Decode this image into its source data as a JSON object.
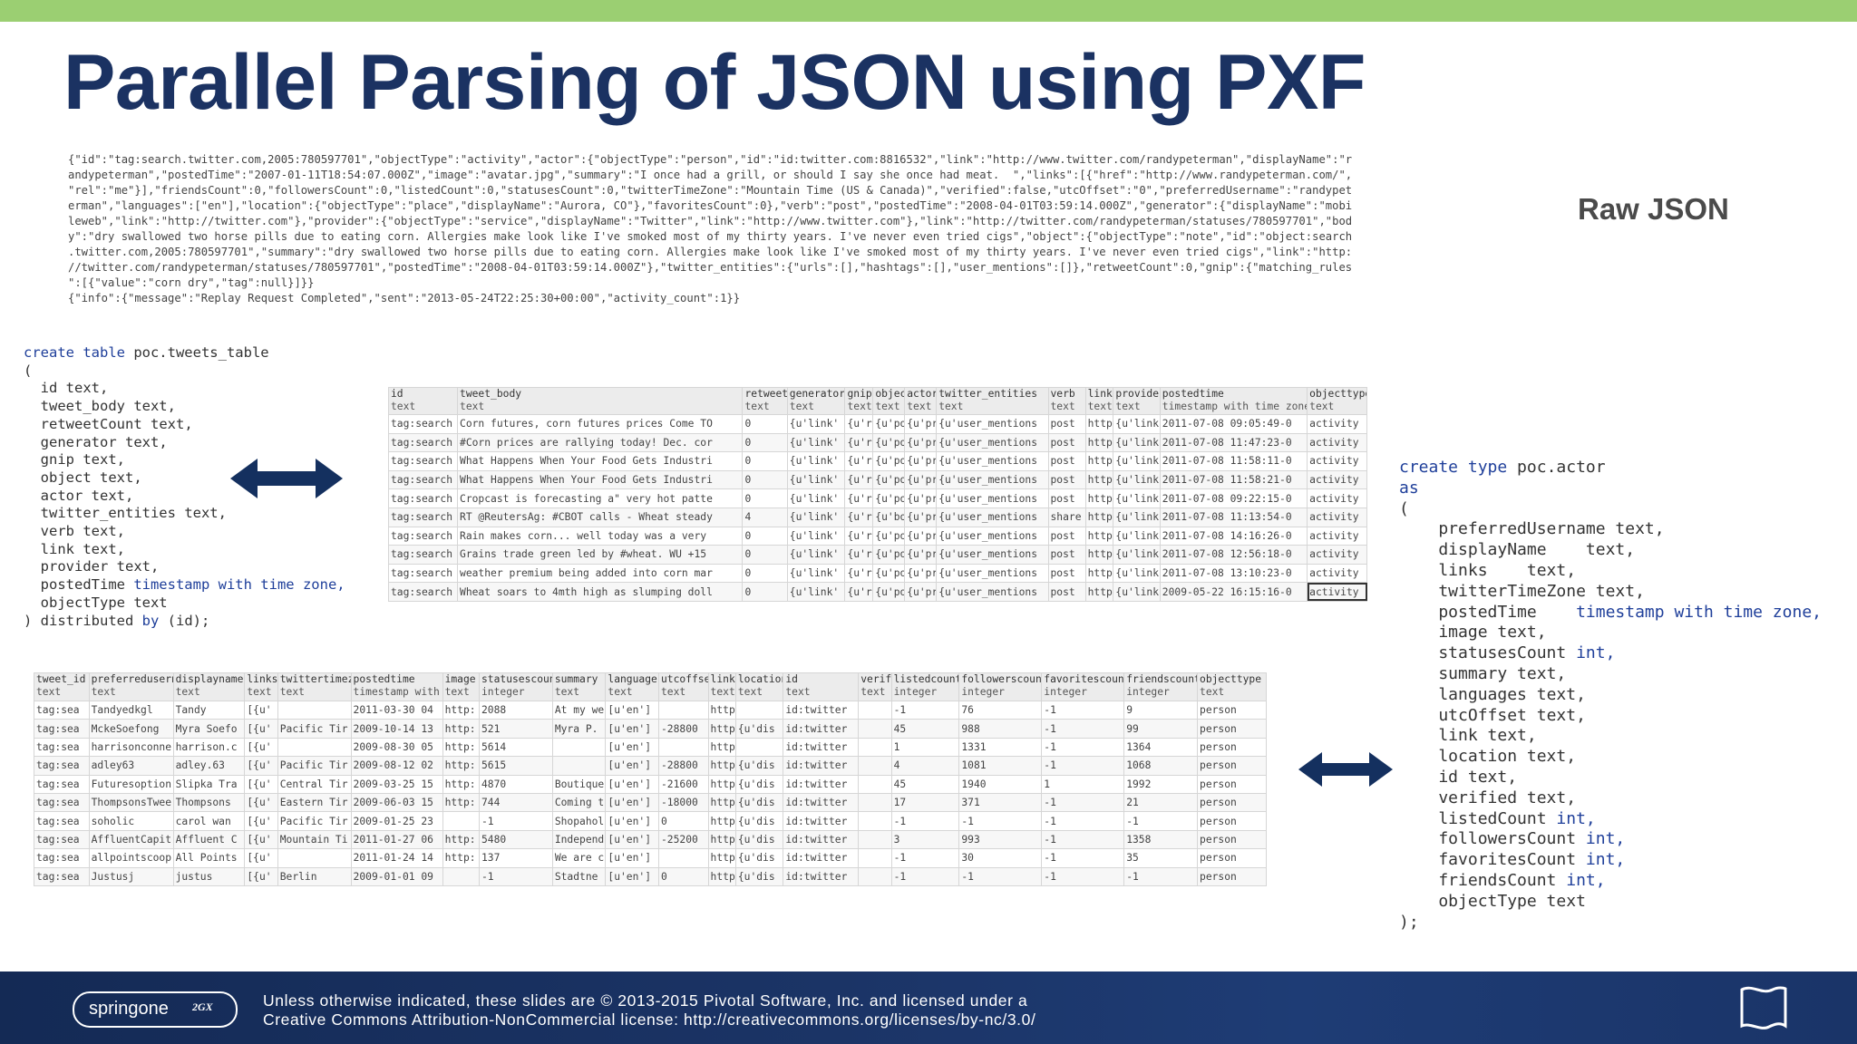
{
  "slide": {
    "title": "Parallel Parsing of JSON using PXF",
    "raw_label": "Raw JSON"
  },
  "raw_json_lines": [
    "{\"id\":\"tag:search.twitter.com,2005:780597701\",\"objectType\":\"activity\",\"actor\":{\"objectType\":\"person\",\"id\":\"id:twitter.com:8816532\",\"link\":\"http://www.twitter.com/randypeterman\",\"displayName\":\"r",
    "andypeterman\",\"postedTime\":\"2007-01-11T18:54:07.000Z\",\"image\":\"avatar.jpg\",\"summary\":\"I once had a grill, or should I say she once had meat.  \",\"links\":[{\"href\":\"http://www.randypeterman.com/\",",
    "\"rel\":\"me\"}],\"friendsCount\":0,\"followersCount\":0,\"listedCount\":0,\"statusesCount\":0,\"twitterTimeZone\":\"Mountain Time (US & Canada)\",\"verified\":false,\"utcOffset\":\"0\",\"preferredUsername\":\"randypet",
    "erman\",\"languages\":[\"en\"],\"location\":{\"objectType\":\"place\",\"displayName\":\"Aurora, CO\"},\"favoritesCount\":0},\"verb\":\"post\",\"postedTime\":\"2008-04-01T03:59:14.000Z\",\"generator\":{\"displayName\":\"mobi",
    "leweb\",\"link\":\"http://twitter.com\"},\"provider\":{\"objectType\":\"service\",\"displayName\":\"Twitter\",\"link\":\"http://www.twitter.com\"},\"link\":\"http://twitter.com/randypeterman/statuses/780597701\",\"bod",
    "y\":\"dry swallowed two horse pills due to eating corn. Allergies make look like I've smoked most of my thirty years. I've never even tried cigs\",\"object\":{\"objectType\":\"note\",\"id\":\"object:search",
    ".twitter.com,2005:780597701\",\"summary\":\"dry swallowed two horse pills due to eating corn. Allergies make look like I've smoked most of my thirty years. I've never even tried cigs\",\"link\":\"http:",
    "//twitter.com/randypeterman/statuses/780597701\",\"postedTime\":\"2008-04-01T03:59:14.000Z\"},\"twitter_entities\":{\"urls\":[],\"hashtags\":[],\"user_mentions\":[]},\"retweetCount\":0,\"gnip\":{\"matching_rules",
    "\":[{\"value\":\"corn dry\",\"tag\":null}]}}",
    "{\"info\":{\"message\":\"Replay Request Completed\",\"sent\":\"2013-05-24T22:25:30+00:00\",\"activity_count\":1}}"
  ],
  "create_table": {
    "kw_create_table": "create table",
    "table_name": " poc.tweets_table",
    "open": "(",
    "columns": [
      {
        "name": "  id",
        "type": " text,"
      },
      {
        "name": "  tweet_body",
        "type": " text,"
      },
      {
        "name": "  retweetCount",
        "type": " text,"
      },
      {
        "name": "  generator",
        "type": " text,"
      },
      {
        "name": "  gnip",
        "type": " text,"
      },
      {
        "name": "  object",
        "type": " text,"
      },
      {
        "name": "  actor",
        "type": " text,"
      },
      {
        "name": "  twitter_entities",
        "type": " text,"
      },
      {
        "name": "  verb",
        "type": " text,"
      },
      {
        "name": "  link",
        "type": " text,"
      },
      {
        "name": "  provider",
        "type": " text,"
      },
      {
        "name": "  postedTime",
        "type": " timestamp with time zone,"
      },
      {
        "name": "  objectType",
        "type": " text"
      }
    ],
    "close": ") distributed ",
    "kw_by": "by",
    "close_end": " (id);"
  },
  "create_type": {
    "kw_create_type": "create type",
    "type_name": " poc.actor",
    "kw_as": "as",
    "open": "(",
    "columns": [
      {
        "name": "    preferredUsername",
        "type": " text,"
      },
      {
        "name": "    displayName   ",
        "type": " text,"
      },
      {
        "name": "    links   ",
        "type": " text,"
      },
      {
        "name": "    twitterTimeZone",
        "type": " text,"
      },
      {
        "name": "    postedTime   ",
        "type": " timestamp with time zone,"
      },
      {
        "name": "    image",
        "type": " text,"
      },
      {
        "name": "    statusesCount",
        "type": " int,"
      },
      {
        "name": "    summary",
        "type": " text,"
      },
      {
        "name": "    languages",
        "type": " text,"
      },
      {
        "name": "    utcOffset",
        "type": " text,"
      },
      {
        "name": "    link",
        "type": " text,"
      },
      {
        "name": "    location",
        "type": " text,"
      },
      {
        "name": "    id",
        "type": " text,"
      },
      {
        "name": "    verified",
        "type": " text,"
      },
      {
        "name": "    listedCount",
        "type": " int,"
      },
      {
        "name": "    followersCount",
        "type": " int,"
      },
      {
        "name": "    favoritesCount",
        "type": " int,"
      },
      {
        "name": "    friendsCount",
        "type": " int,"
      },
      {
        "name": "    objectType",
        "type": " text"
      }
    ],
    "close": ");"
  },
  "tweets_grid": {
    "headers": [
      {
        "name": "id",
        "type": "text"
      },
      {
        "name": "tweet_body",
        "type": "text"
      },
      {
        "name": "retweet",
        "type": "text"
      },
      {
        "name": "generator",
        "type": "text"
      },
      {
        "name": "gnip",
        "type": "text"
      },
      {
        "name": "object",
        "type": "text"
      },
      {
        "name": "actor",
        "type": "text"
      },
      {
        "name": "twitter_entities",
        "type": "text"
      },
      {
        "name": "verb",
        "type": "text"
      },
      {
        "name": "link",
        "type": "text"
      },
      {
        "name": "provider",
        "type": "text"
      },
      {
        "name": "postedtime",
        "type": "timestamp with time zone"
      },
      {
        "name": "objecttype",
        "type": "text"
      }
    ],
    "rows": [
      [
        "tag:search",
        "Corn futures, corn futures prices  Come TO",
        "0",
        "{u'link'",
        "{u'r",
        "{u'po",
        "{u'pr",
        "{u'user_mentions",
        "post",
        "http",
        "{u'link",
        "2011-07-08 09:05:49-0",
        "activity"
      ],
      [
        "tag:search",
        "#Corn prices are rallying today! Dec. cor",
        "0",
        "{u'link'",
        "{u'r",
        "{u'po",
        "{u'pr",
        "{u'user_mentions",
        "post",
        "http",
        "{u'link",
        "2011-07-08 11:47:23-0",
        "activity"
      ],
      [
        "tag:search",
        "What Happens When Your Food Gets Industri",
        "0",
        "{u'link'",
        "{u'r",
        "{u'po",
        "{u'pr",
        "{u'user_mentions",
        "post",
        "http",
        "{u'link",
        "2011-07-08 11:58:11-0",
        "activity"
      ],
      [
        "tag:search",
        "What Happens When Your Food Gets Industri",
        "0",
        "{u'link'",
        "{u'r",
        "{u'po",
        "{u'pr",
        "{u'user_mentions",
        "post",
        "http",
        "{u'link",
        "2011-07-08 11:58:21-0",
        "activity"
      ],
      [
        "tag:search",
        "Cropcast is forecasting a\" very hot patte",
        "0",
        "{u'link'",
        "{u'r",
        "{u'po",
        "{u'pr",
        "{u'user_mentions",
        "post",
        "http",
        "{u'link",
        "2011-07-08 09:22:15-0",
        "activity"
      ],
      [
        "tag:search",
        "RT @ReutersAg: #CBOT calls - Wheat steady",
        "4",
        "{u'link'",
        "{u'r",
        "{u'bo",
        "{u'pr",
        "{u'user_mentions",
        "share",
        "http",
        "{u'link",
        "2011-07-08 11:13:54-0",
        "activity"
      ],
      [
        "tag:search",
        "Rain makes corn... well today was a very",
        "0",
        "{u'link'",
        "{u'r",
        "{u'po",
        "{u'pr",
        "{u'user_mentions",
        "post",
        "http",
        "{u'link",
        "2011-07-08 14:16:26-0",
        "activity"
      ],
      [
        "tag:search",
        "Grains trade green led by #wheat.  WU +15",
        "0",
        "{u'link'",
        "{u'r",
        "{u'po",
        "{u'pr",
        "{u'user_mentions",
        "post",
        "http",
        "{u'link",
        "2011-07-08 12:56:18-0",
        "activity"
      ],
      [
        "tag:search",
        "weather premium being added into corn mar",
        "0",
        "{u'link'",
        "{u'r",
        "{u'po",
        "{u'pr",
        "{u'user_mentions",
        "post",
        "http",
        "{u'link",
        "2011-07-08 13:10:23-0",
        "activity"
      ],
      [
        "tag:search",
        "Wheat soars to 4mth high as slumping doll",
        "0",
        "{u'link'",
        "{u'r",
        "{u'po",
        "{u'pr",
        "{u'user_mentions",
        "post",
        "http",
        "{u'link",
        "2009-05-22 16:15:16-0",
        "activity"
      ]
    ]
  },
  "actors_grid": {
    "headers": [
      {
        "name": "tweet_id",
        "type": "text"
      },
      {
        "name": "preferredusername",
        "type": "text"
      },
      {
        "name": "displayname",
        "type": "text"
      },
      {
        "name": "links",
        "type": "text"
      },
      {
        "name": "twittertimezo",
        "type": "text"
      },
      {
        "name": "postedtime",
        "type": "timestamp with t"
      },
      {
        "name": "image",
        "type": "text"
      },
      {
        "name": "statusescount",
        "type": "integer"
      },
      {
        "name": "summary",
        "type": "text"
      },
      {
        "name": "languages",
        "type": "text"
      },
      {
        "name": "utcoffset",
        "type": "text"
      },
      {
        "name": "link",
        "type": "text"
      },
      {
        "name": "location",
        "type": "text"
      },
      {
        "name": "id",
        "type": "text"
      },
      {
        "name": "verified",
        "type": "text"
      },
      {
        "name": "listedcount",
        "type": "integer"
      },
      {
        "name": "followerscount",
        "type": "integer"
      },
      {
        "name": "favoritescount",
        "type": "integer"
      },
      {
        "name": "friendscount",
        "type": "integer"
      },
      {
        "name": "objecttype",
        "type": "text"
      }
    ],
    "rows": [
      [
        "tag:sea",
        "Tandyedkgl",
        "Tandy",
        "[{u'",
        "",
        "2011-03-30 04",
        "http:",
        "2088",
        "At my we",
        "[u'en']",
        "",
        "http",
        "",
        "id:twitter",
        "",
        "-1",
        "76",
        "-1",
        "9",
        "person"
      ],
      [
        "tag:sea",
        "MckeSoefong",
        "Myra Soefo",
        "[{u'",
        "Pacific Tir",
        "2009-10-14 13",
        "http:",
        "521",
        "Myra P.",
        "[u'en']",
        "-28800",
        "http",
        "{u'dis",
        "id:twitter",
        "",
        "45",
        "988",
        "-1",
        "99",
        "person"
      ],
      [
        "tag:sea",
        "harrisonconne",
        "harrison.c",
        "[{u'",
        "",
        "2009-08-30 05",
        "http:",
        "5614",
        "",
        "[u'en']",
        "",
        "http",
        "",
        "id:twitter",
        "",
        "1",
        "1331",
        "-1",
        "1364",
        "person"
      ],
      [
        "tag:sea",
        "adley63",
        "adley.63",
        "[{u'",
        "Pacific Tir",
        "2009-08-12 02",
        "http:",
        "5615",
        "",
        "[u'en']",
        "-28800",
        "http",
        "{u'dis",
        "id:twitter",
        "",
        "4",
        "1081",
        "-1",
        "1068",
        "person"
      ],
      [
        "tag:sea",
        "Futuresoption",
        "Slipka Tra",
        "[{u'",
        "Central Tir",
        "2009-03-25 15",
        "http:",
        "4870",
        "Boutique",
        "[u'en']",
        "-21600",
        "http",
        "{u'dis",
        "id:twitter",
        "",
        "45",
        "1940",
        "1",
        "1992",
        "person"
      ],
      [
        "tag:sea",
        "ThompsonsTwee",
        "Thompsons",
        "[{u'",
        "Eastern Tir",
        "2009-06-03 15",
        "http:",
        "744",
        "Coming t",
        "[u'en']",
        "-18000",
        "http",
        "{u'dis",
        "id:twitter",
        "",
        "17",
        "371",
        "-1",
        "21",
        "person"
      ],
      [
        "tag:sea",
        "soholic",
        "carol wan",
        "[{u'",
        "Pacific Tir",
        "2009-01-25 23",
        "",
        "-1",
        "Shopahol",
        "[u'en']",
        "0",
        "http",
        "{u'dis",
        "id:twitter",
        "",
        "-1",
        "-1",
        "-1",
        "-1",
        "person"
      ],
      [
        "tag:sea",
        "AffluentCapit",
        "Affluent C",
        "[{u'",
        "Mountain Ti",
        "2011-01-27 06",
        "http:",
        "5480",
        "Independ",
        "[u'en']",
        "-25200",
        "http",
        "{u'dis",
        "id:twitter",
        "",
        "3",
        "993",
        "-1",
        "1358",
        "person"
      ],
      [
        "tag:sea",
        "allpointscoop",
        "All Points",
        "[{u'",
        "",
        "2011-01-24 14",
        "http:",
        "137",
        "We are c",
        "[u'en']",
        "",
        "http",
        "{u'dis",
        "id:twitter",
        "",
        "-1",
        "30",
        "-1",
        "35",
        "person"
      ],
      [
        "tag:sea",
        "Justusj",
        "justus",
        "[{u'",
        "Berlin",
        "2009-01-01 09",
        "",
        "-1",
        "Stadtne",
        "[u'en']",
        "0",
        "http",
        "{u'dis",
        "id:twitter",
        "",
        "-1",
        "-1",
        "-1",
        "-1",
        "person"
      ]
    ]
  },
  "footer": {
    "logo_text": "springone",
    "logo_sub": "2GX",
    "license_line1": "Unless otherwise indicated, these slides are © 2013-2015 Pivotal Software, Inc. and licensed under a",
    "license_line2": "Creative Commons Attribution-NonCommercial license: http://creativecommons.org/licenses/by-nc/3.0/"
  },
  "icons": {
    "left_arrow_1": "double-arrow-icon",
    "right_arrow_2": "double-arrow-icon",
    "footer": "flag-icon"
  },
  "colors": {
    "top_bar": "#9bcf72",
    "title": "#1b3262",
    "arrow": "#14305f",
    "footer_bg": "#1b3466",
    "keyword": "#1f3f9a"
  }
}
